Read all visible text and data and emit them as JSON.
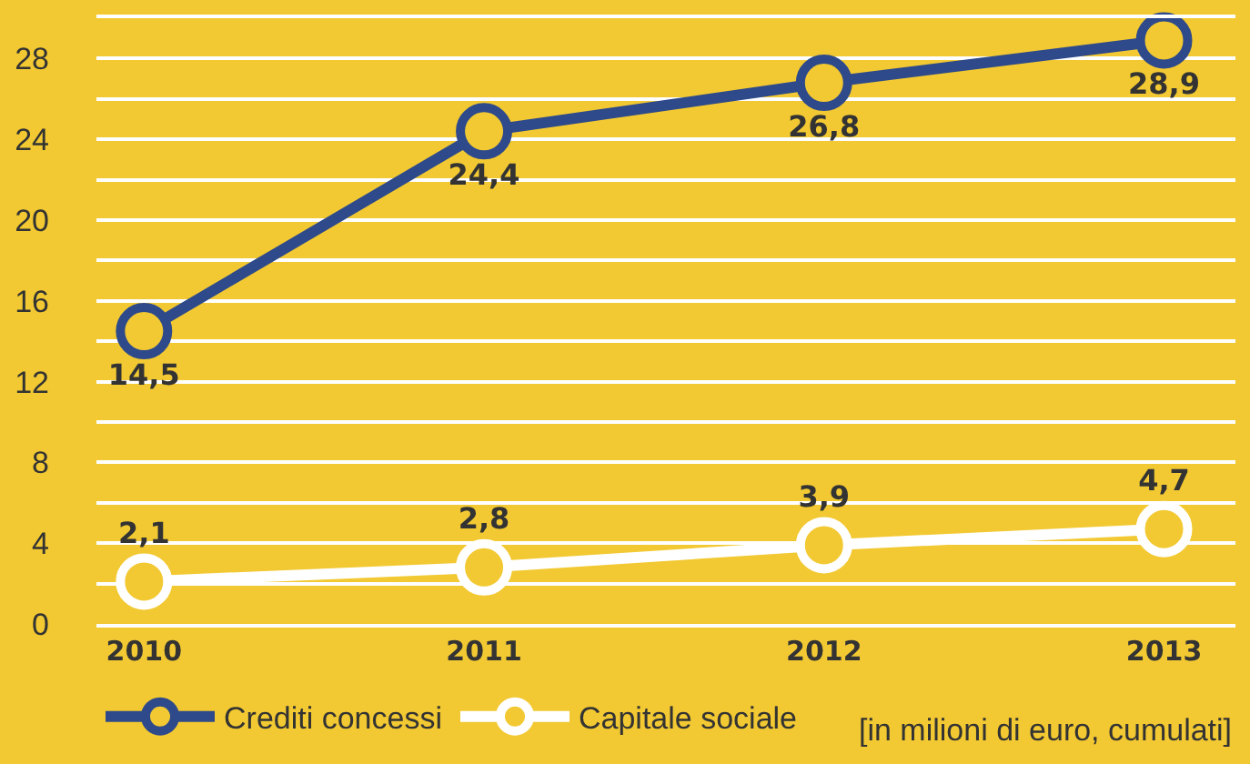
{
  "chart_data": {
    "type": "line",
    "x": [
      2010,
      2011,
      2012,
      2013
    ],
    "xlim": [
      2009.86,
      2013.21
    ],
    "xticks": [
      2010,
      2011,
      2012,
      2013
    ],
    "ylim": [
      0,
      30
    ],
    "yticks": [
      0,
      {
        "value": 2,
        "label": null
      },
      4,
      {
        "value": 6,
        "label": null
      },
      8,
      {
        "value": 10,
        "label": null
      },
      12,
      {
        "value": 14,
        "label": null
      },
      16,
      {
        "value": 18,
        "label": null
      },
      20,
      {
        "value": 22,
        "label": null
      },
      24,
      {
        "value": 26,
        "label": null
      },
      28,
      {
        "value": 30,
        "label": null
      }
    ],
    "series": [
      {
        "name": "Crediti concessi",
        "color": "#2e4a8b",
        "values": [
          14.5,
          24.4,
          26.8,
          28.9
        ],
        "value_labels": [
          "14,5",
          "24,4",
          "26,8",
          "28,9"
        ]
      },
      {
        "name": "Capitale sociale",
        "color": "#ffffff",
        "values": [
          2.1,
          2.8,
          3.9,
          4.7
        ],
        "value_labels": [
          "2,1",
          "2,8",
          "3,9",
          "4,7"
        ]
      }
    ],
    "grid": "y",
    "legend": "bottom",
    "marker": "circle",
    "line_style": "solid",
    "annotations": [
      "[in milioni di euro, cumulati]"
    ]
  }
}
